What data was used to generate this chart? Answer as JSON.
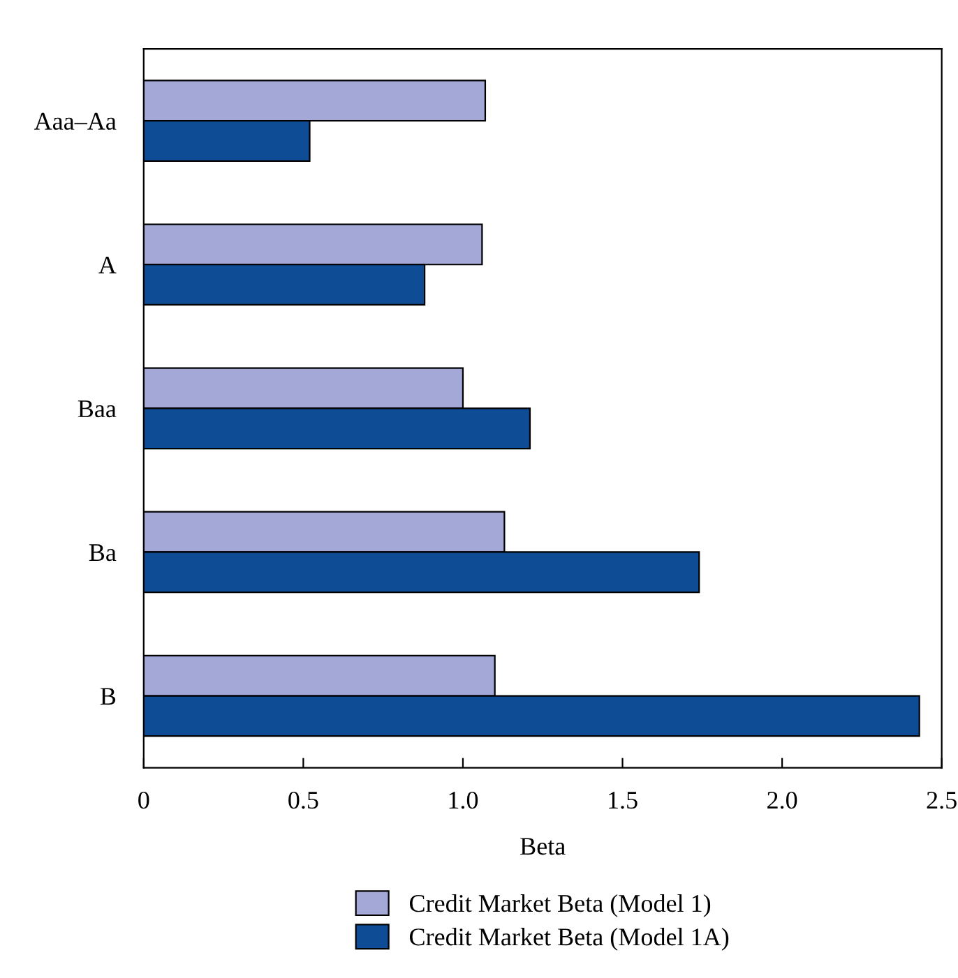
{
  "chart_data": {
    "type": "bar",
    "orientation": "horizontal",
    "xlabel": "Beta",
    "categories": [
      "Aaa–Aa",
      "A",
      "Baa",
      "Ba",
      "B"
    ],
    "series": [
      {
        "name": "Credit Market Beta (Model 1)",
        "color": "#a3a8d6",
        "values": [
          1.07,
          1.06,
          1.0,
          1.13,
          1.1
        ]
      },
      {
        "name": "Credit Market Beta (Model 1A)",
        "color": "#0f4c96",
        "values": [
          0.52,
          0.88,
          1.21,
          1.74,
          2.43
        ]
      }
    ],
    "xlim": [
      0,
      2.5
    ],
    "xticks": [
      0,
      0.5,
      "1.0",
      1.5,
      "2.0",
      2.5
    ],
    "grid": false,
    "legend": "bottom"
  }
}
